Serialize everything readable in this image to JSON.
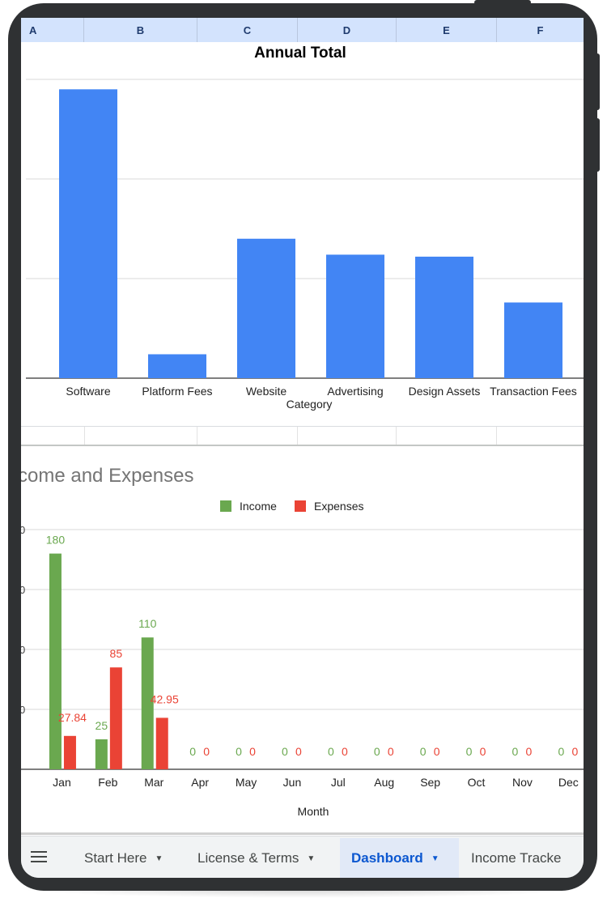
{
  "columns": [
    "A",
    "B",
    "C",
    "D",
    "E",
    "F"
  ],
  "chart_data": [
    {
      "type": "bar",
      "title": "Annual Total",
      "xlabel": "Category",
      "categories": [
        "Software",
        "Platform Fees",
        "Website",
        "Advertising",
        "Design Assets",
        "Transaction Fees"
      ],
      "values": [
        145,
        12,
        70,
        62,
        61,
        38
      ],
      "ylim": [
        0,
        150
      ],
      "color": "#4285f4",
      "grid": true
    },
    {
      "type": "bar",
      "title": "come and Expenses",
      "xlabel": "Month",
      "categories": [
        "Jan",
        "Feb",
        "Mar",
        "Apr",
        "May",
        "Jun",
        "Jul",
        "Aug",
        "Sep",
        "Oct",
        "Nov",
        "Dec"
      ],
      "series": [
        {
          "name": "Income",
          "color": "#6aa84f",
          "values": [
            180,
            25,
            110,
            0,
            0,
            0,
            0,
            0,
            0,
            0,
            0,
            0
          ],
          "labels": [
            "180",
            "25",
            "110",
            "0",
            "0",
            "0",
            "0",
            "0",
            "0",
            "0",
            "0",
            "0"
          ]
        },
        {
          "name": "Expenses",
          "color": "#ea4335",
          "values": [
            27.84,
            85,
            42.95,
            0,
            0,
            0,
            0,
            0,
            0,
            0,
            0,
            0
          ],
          "labels": [
            "27.84",
            "85",
            "42.95",
            "0",
            "0",
            "0",
            "0",
            "0",
            "0",
            "0",
            "0",
            "0"
          ]
        }
      ],
      "ylim": [
        0,
        200
      ],
      "legend": "top",
      "grid": true
    }
  ],
  "tabs": [
    {
      "label": "Start Here",
      "active": false
    },
    {
      "label": "License & Terms",
      "active": false
    },
    {
      "label": "Dashboard",
      "active": true
    },
    {
      "label": "Income Tracke",
      "active": false
    }
  ],
  "icons": {
    "menu": "menu-icon",
    "tab_caret": "caret-down-icon"
  }
}
